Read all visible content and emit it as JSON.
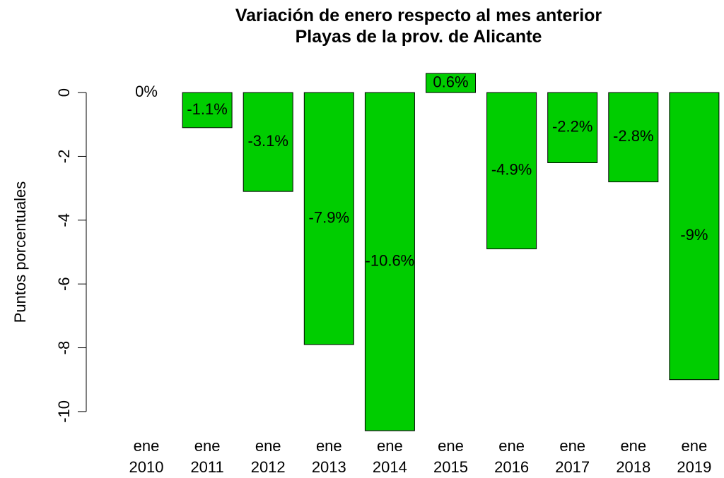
{
  "chart_data": {
    "type": "bar",
    "title": "Variación de enero respecto al mes anterior",
    "subtitle": "Playas de la prov. de Alicante",
    "y_label": "Puntos porcentuales",
    "categories": [
      "ene\n2010",
      "ene\n2011",
      "ene\n2012",
      "ene\n2013",
      "ene\n2014",
      "ene\n2015",
      "ene\n2016",
      "ene\n2017",
      "ene\n2018",
      "ene\n2019"
    ],
    "values": [
      0,
      -1.1,
      -3.1,
      -7.9,
      -10.6,
      0.6,
      -4.9,
      -2.2,
      -2.8,
      -9
    ],
    "value_labels": [
      "0%",
      "-1.1%",
      "-3.1%",
      "-7.9%",
      "-10.6%",
      "0.6%",
      "-4.9%",
      "-2.2%",
      "-2.8%",
      "-9%"
    ],
    "color": "#00cd00",
    "ylim": [
      -10.6,
      0.6
    ],
    "yticks": [
      0,
      -2,
      -4,
      -6,
      -8,
      -10
    ],
    "grid": false
  }
}
